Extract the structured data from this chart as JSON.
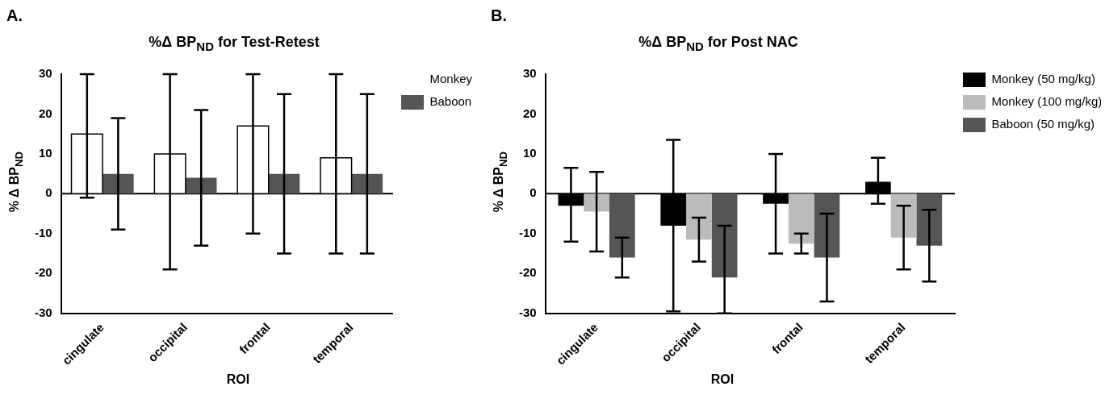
{
  "chart_data": [
    {
      "type": "bar",
      "title": "%Δ BP$_{ND}$ for Test-Retest",
      "xlabel": "ROI",
      "ylabel": "% Δ BP$_{ND}$",
      "annotations": [
        "A."
      ],
      "categories": [
        "cingulate",
        "occipital",
        "frontal",
        "temporal"
      ],
      "series": [
        {
          "name": "Monkey",
          "color": "#ffffff",
          "values": [
            15,
            10,
            17,
            9
          ],
          "errors": [
            [
              -1,
              30
            ],
            [
              -19,
              30
            ],
            [
              -10,
              30
            ],
            [
              -15,
              30
            ]
          ]
        },
        {
          "name": "Baboon",
          "color": "#555555",
          "values": [
            5,
            4,
            5,
            5
          ],
          "errors": [
            [
              -9,
              19
            ],
            [
              -13,
              21
            ],
            [
              -15,
              25
            ],
            [
              -15,
              25
            ]
          ]
        }
      ],
      "ylim": [
        -30,
        30
      ],
      "yticks": [
        -30,
        -20,
        -10,
        0,
        10,
        20,
        30
      ],
      "grid": false,
      "legend": "right",
      "ref_lines": [
        {
          "axis": "y",
          "value": 0,
          "color": "#000000"
        }
      ]
    },
    {
      "type": "bar",
      "title": "%Δ BP$_{ND}$ for Post NAC",
      "xlabel": "ROI",
      "ylabel": "% Δ BP$_{ND}$",
      "annotations": [
        "B."
      ],
      "categories": [
        "cingulate",
        "occipital",
        "frontal",
        "temporal"
      ],
      "series": [
        {
          "name": "Monkey (50 mg/kg)",
          "color": "#000000",
          "values": [
            -3,
            -8,
            -2.5,
            3
          ],
          "errors": [
            [
              -12,
              6.5
            ],
            [
              -29.5,
              13.5
            ],
            [
              -15,
              10
            ],
            [
              -2.5,
              9
            ]
          ]
        },
        {
          "name": "Monkey (100 mg/kg)",
          "color": "#bbbbbb",
          "values": [
            -4.5,
            -11.5,
            -12.5,
            -11
          ],
          "errors": [
            [
              -14.5,
              5.5
            ],
            [
              -17,
              -6
            ],
            [
              -15,
              -10
            ],
            [
              -19,
              -3
            ]
          ]
        },
        {
          "name": "Baboon (50 mg/kg)",
          "color": "#555555",
          "values": [
            -16,
            -21,
            -16,
            -13
          ],
          "errors": [
            [
              -21,
              -11
            ],
            [
              -30,
              -8
            ],
            [
              -27,
              -5
            ],
            [
              -22,
              -4
            ]
          ]
        }
      ],
      "ylim": [
        -30,
        30
      ],
      "yticks": [
        -30,
        -20,
        -10,
        0,
        10,
        20,
        30
      ],
      "grid": false,
      "legend": "right",
      "ref_lines": [
        {
          "axis": "y",
          "value": 0,
          "color": "#000000"
        }
      ]
    }
  ]
}
